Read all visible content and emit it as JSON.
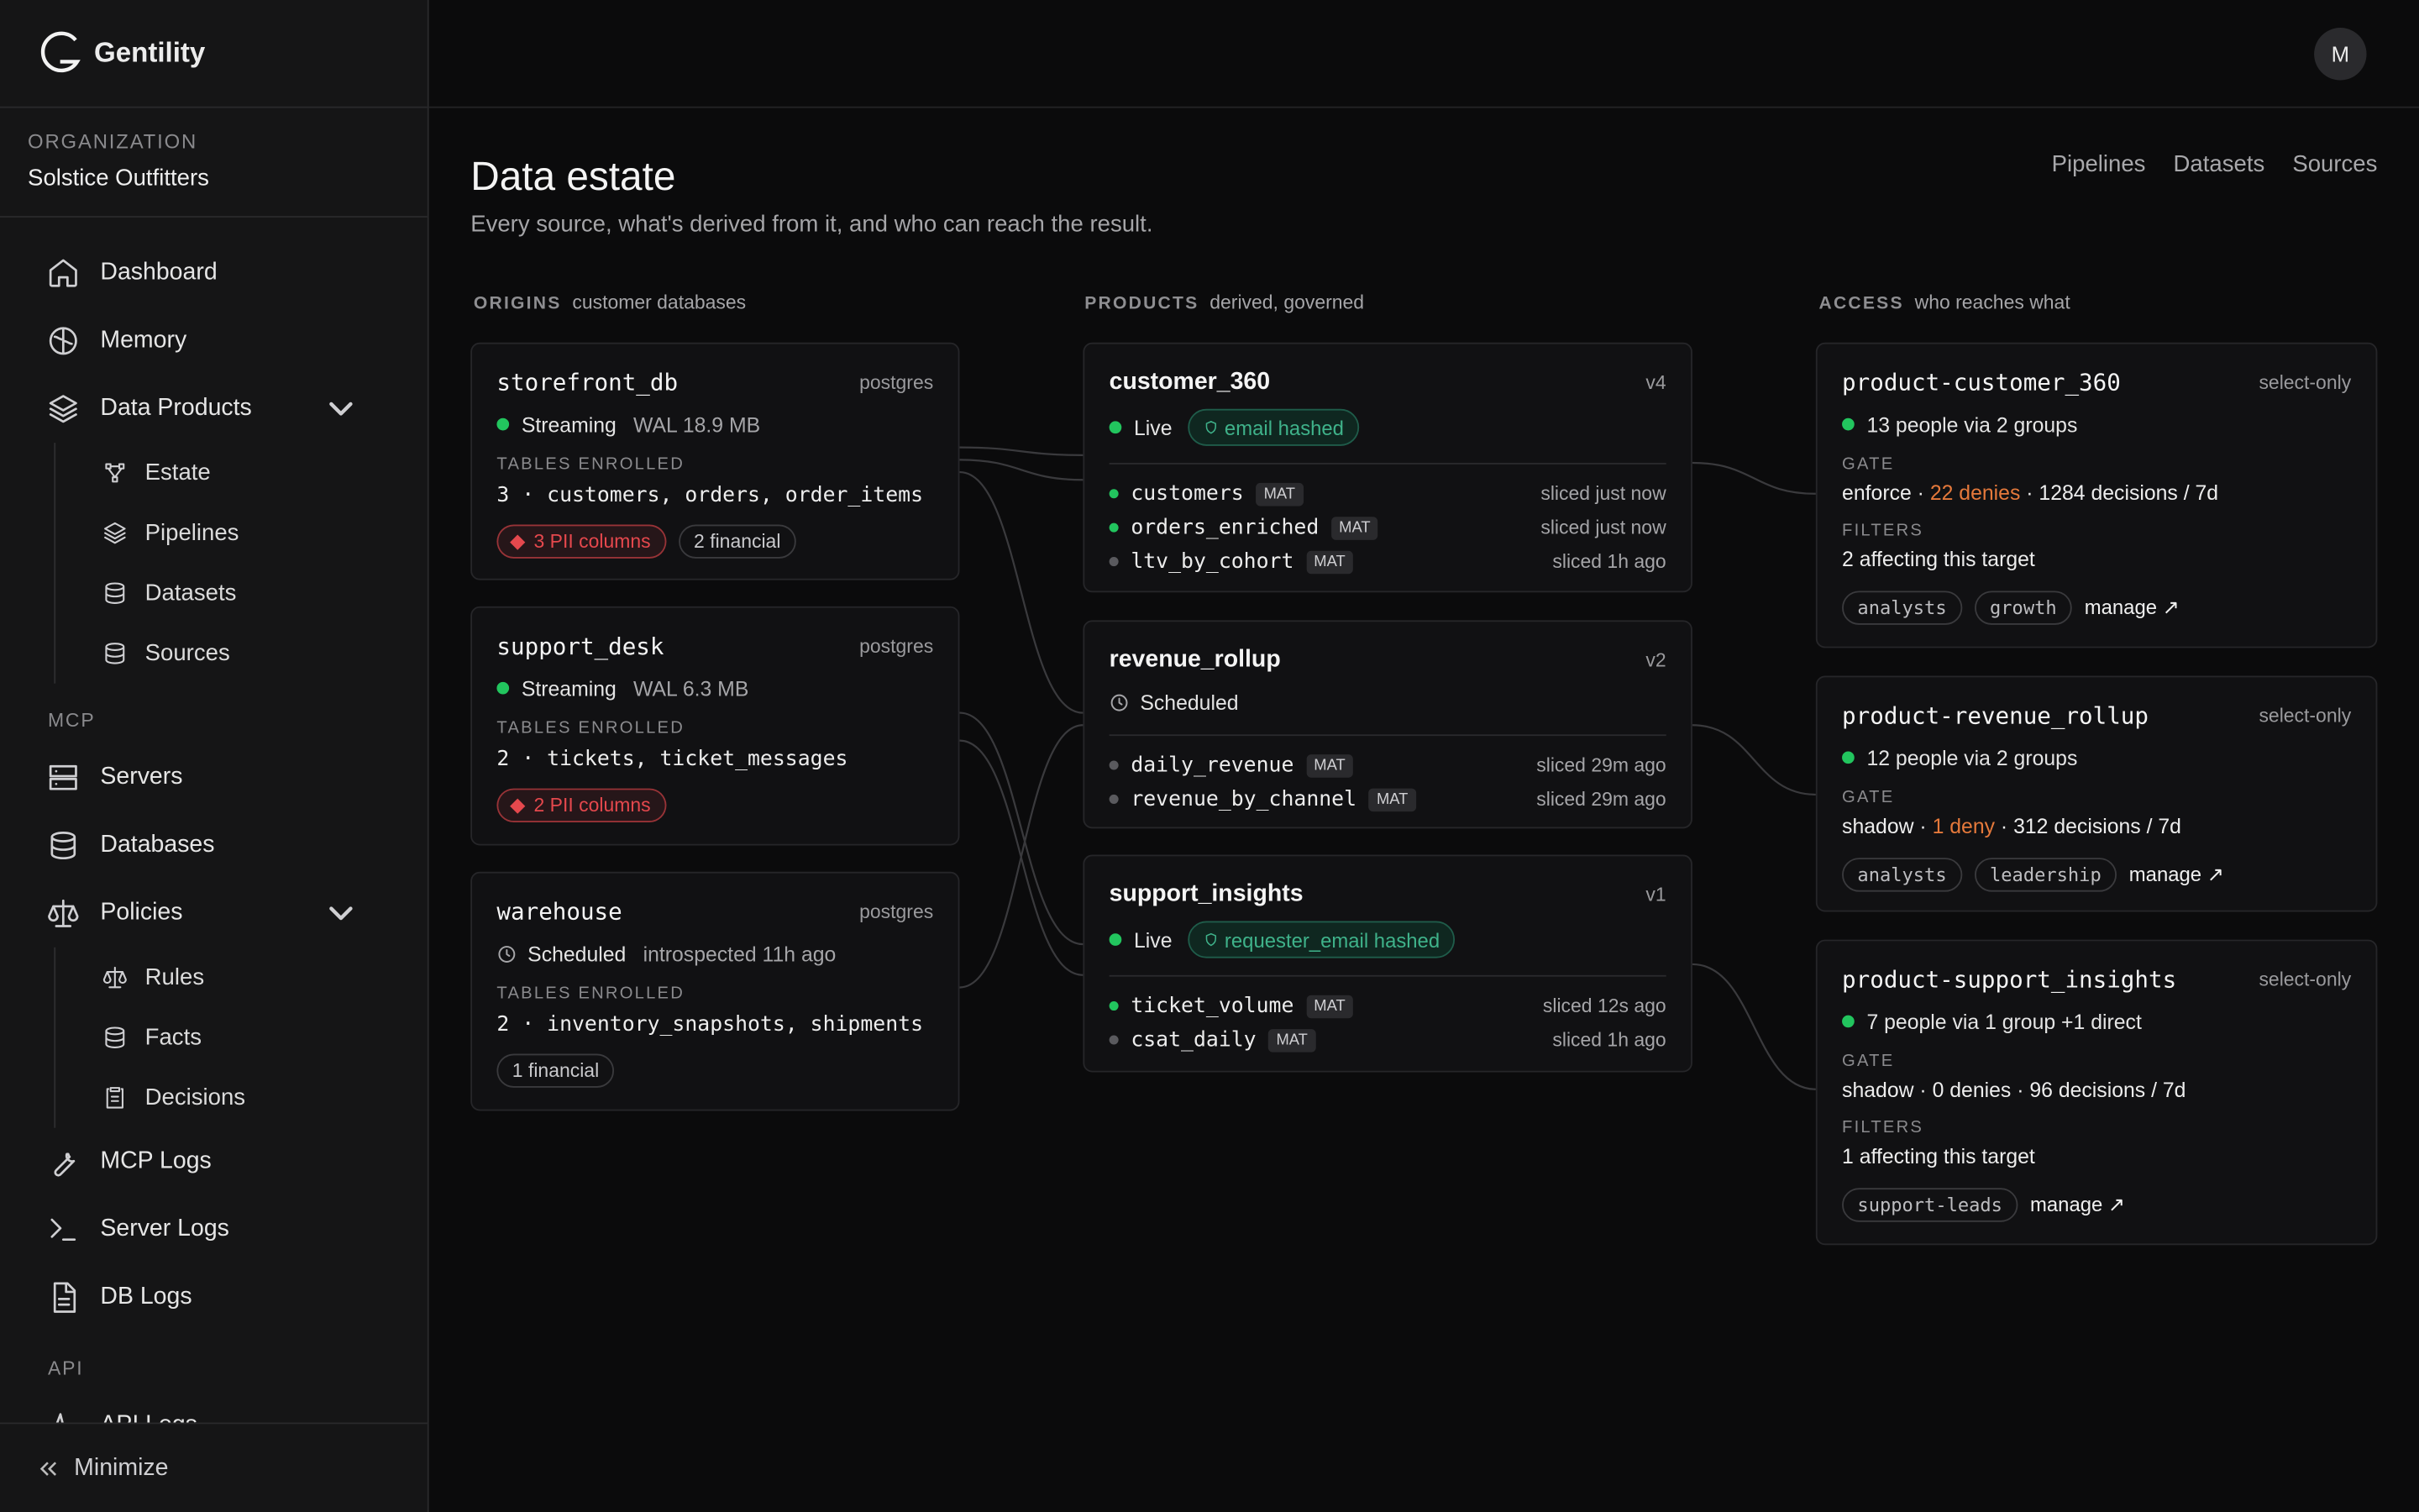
{
  "brand": "Gentility",
  "avatar": "M",
  "sidebar": {
    "org_label": "ORGANIZATION",
    "org_name": "Solstice Outfitters",
    "groups": [
      {
        "items": [
          {
            "label": "Dashboard"
          },
          {
            "label": "Memory"
          },
          {
            "label": "Data Products",
            "children": [
              "Estate",
              "Pipelines",
              "Datasets",
              "Sources"
            ]
          }
        ]
      },
      {
        "heading": "MCP",
        "items": [
          {
            "label": "Servers"
          },
          {
            "label": "Databases"
          },
          {
            "label": "Policies",
            "children": [
              "Rules",
              "Facts",
              "Decisions"
            ]
          },
          {
            "label": "MCP Logs"
          },
          {
            "label": "Server Logs"
          },
          {
            "label": "DB Logs"
          }
        ]
      },
      {
        "heading": "API",
        "items": [
          {
            "label": "API Logs"
          }
        ]
      }
    ],
    "minimize": "Minimize"
  },
  "page": {
    "title": "Data estate",
    "subtitle": "Every source, what's derived from it, and who can reach the result.",
    "tabs": [
      "Pipelines",
      "Datasets",
      "Sources"
    ]
  },
  "origins": {
    "label": "ORIGINS",
    "hint": "customer databases",
    "cards": [
      {
        "name": "storefront_db",
        "engine": "postgres",
        "status": "Streaming",
        "status_color": "#22c55e",
        "detail": "WAL 18.9 MB",
        "tables_label": "TABLES ENROLLED",
        "tables": "3 · customers, orders, order_items",
        "badges": [
          {
            "text": "3 PII columns",
            "color": "#e5484d"
          },
          {
            "text": "2 financial"
          }
        ]
      },
      {
        "name": "support_desk",
        "engine": "postgres",
        "status": "Streaming",
        "status_color": "#22c55e",
        "detail": "WAL 6.3 MB",
        "tables_label": "TABLES ENROLLED",
        "tables": "2 · tickets, ticket_messages",
        "badges": [
          {
            "text": "2 PII columns",
            "color": "#e5484d"
          }
        ]
      },
      {
        "name": "warehouse",
        "engine": "postgres",
        "status": "Scheduled",
        "detail": "introspected 11h ago",
        "tables_label": "TABLES ENROLLED",
        "tables": "2 · inventory_snapshots, shipments",
        "badges": [
          {
            "text": "1 financial"
          }
        ]
      }
    ]
  },
  "products": {
    "label": "PRODUCTS",
    "hint": "derived, governed",
    "cards": [
      {
        "name": "customer_360",
        "version": "v4",
        "status": "Live",
        "status_color": "#22c55e",
        "badge": "email hashed",
        "outputs": [
          {
            "name": "customers",
            "tag": "MAT",
            "freshness": "sliced just now",
            "dot": "#22c55e"
          },
          {
            "name": "orders_enriched",
            "tag": "MAT",
            "freshness": "sliced just now",
            "dot": "#22c55e"
          },
          {
            "name": "ltv_by_cohort",
            "tag": "MAT",
            "freshness": "sliced 1h ago",
            "dot": "#5a5a5e"
          }
        ]
      },
      {
        "name": "revenue_rollup",
        "version": "v2",
        "status": "Scheduled",
        "outputs": [
          {
            "name": "daily_revenue",
            "tag": "MAT",
            "freshness": "sliced 29m ago",
            "dot": "#5a5a5e"
          },
          {
            "name": "revenue_by_channel",
            "tag": "MAT",
            "freshness": "sliced 29m ago",
            "dot": "#5a5a5e"
          }
        ]
      },
      {
        "name": "support_insights",
        "version": "v1",
        "status": "Live",
        "status_color": "#22c55e",
        "badge": "requester_email hashed",
        "outputs": [
          {
            "name": "ticket_volume",
            "tag": "MAT",
            "freshness": "sliced 12s ago",
            "dot": "#22c55e"
          },
          {
            "name": "csat_daily",
            "tag": "MAT",
            "freshness": "sliced 1h ago",
            "dot": "#5a5a5e"
          }
        ]
      }
    ]
  },
  "access": {
    "label": "ACCESS",
    "hint": "who reaches what",
    "cards": [
      {
        "name": "product-customer_360",
        "mode": "select-only",
        "audience": "13 people via 2 groups",
        "gate_label": "GATE",
        "gate": [
          {
            "text": "enforce · "
          },
          {
            "text": "22 denies",
            "color": "#e5793b"
          },
          {
            "text": " · 1284 decisions / 7d"
          }
        ],
        "filters_label": "FILTERS",
        "filters": "2 affecting this target",
        "tags": [
          "analysts",
          "growth"
        ],
        "manage": "manage ↗"
      },
      {
        "name": "product-revenue_rollup",
        "mode": "select-only",
        "audience": "12 people via 2 groups",
        "gate_label": "GATE",
        "gate": [
          {
            "text": "shadow · "
          },
          {
            "text": "1 deny",
            "color": "#e5793b"
          },
          {
            "text": " · 312 decisions / 7d"
          }
        ],
        "tags": [
          "analysts",
          "leadership"
        ],
        "manage": "manage ↗"
      },
      {
        "name": "product-support_insights",
        "mode": "select-only",
        "audience": "7 people via 1 group +1 direct",
        "gate_label": "GATE",
        "gate": [
          {
            "text": "shadow · 0 denies · 96 decisions / 7d"
          }
        ],
        "filters_label": "FILTERS",
        "filters": "1 affecting this target",
        "tags": [
          "support-leads"
        ],
        "manage": "manage ↗"
      }
    ]
  }
}
